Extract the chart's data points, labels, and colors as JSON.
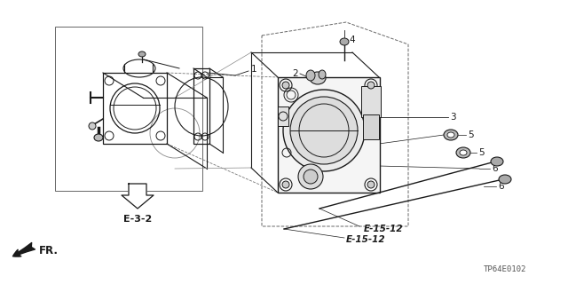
{
  "bg_color": "#ffffff",
  "line_color": "#1a1a1a",
  "part_number": "TP64E0102",
  "labels": {
    "e32": "E-3-2",
    "e1512a": "E-15-12",
    "e1512b": "E-15-12",
    "fr": "FR.",
    "p1": "1",
    "p2": "2",
    "p3": "3",
    "p4": "4",
    "p5a": "5",
    "p5b": "5",
    "p6a": "6",
    "p6b": "6"
  }
}
